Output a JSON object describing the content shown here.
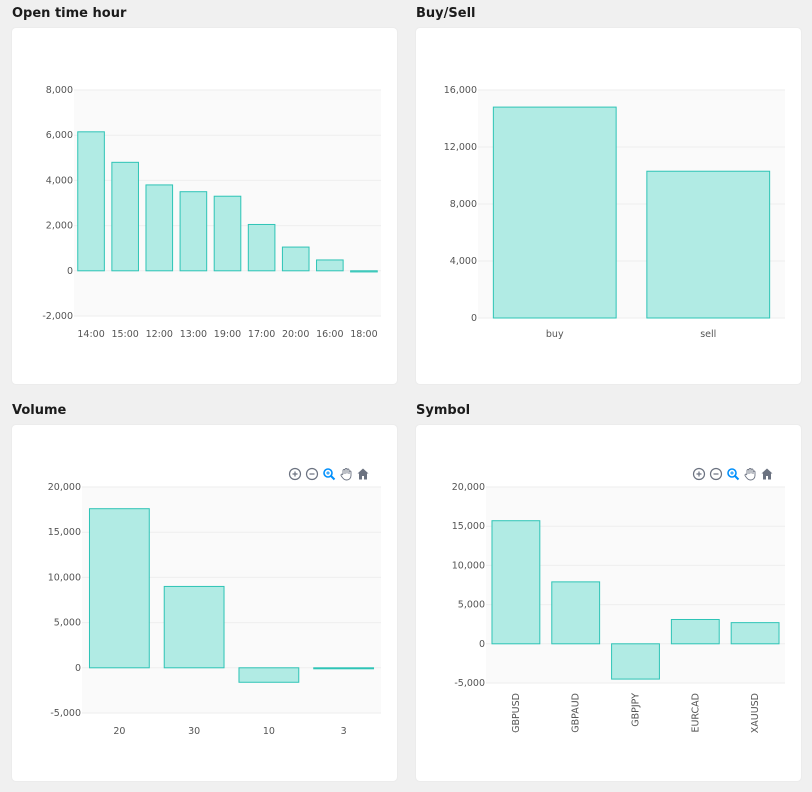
{
  "titles": {
    "open_time_hour": "Open time hour",
    "buy_sell": "Buy/Sell",
    "volume": "Volume",
    "symbol": "Symbol"
  },
  "colors": {
    "bar_fill": "#b1ebe4",
    "bar_stroke": "#2ec4b6",
    "plot_bg": "#fafafa",
    "grid": "#eeeeee",
    "icon_gray": "#6b7280",
    "icon_active": "#008ffb"
  },
  "toolbar_icons": [
    "zoom-in-icon",
    "zoom-out-icon",
    "selection-zoom-icon",
    "pan-hand-icon",
    "home-reset-icon"
  ],
  "chart_data": [
    {
      "id": "open_time_hour",
      "type": "bar",
      "categories": [
        "14:00",
        "15:00",
        "12:00",
        "13:00",
        "19:00",
        "17:00",
        "20:00",
        "16:00",
        "18:00"
      ],
      "values": [
        6150,
        4800,
        3800,
        3500,
        3300,
        2050,
        1050,
        480,
        -50
      ],
      "ylim": [
        -2000,
        8000
      ],
      "yticks": [
        8000,
        6000,
        4000,
        2000,
        0,
        -2000
      ],
      "ytick_labels": [
        "8,000",
        "6,000",
        "4,000",
        "2,000",
        "0",
        "-2,000"
      ]
    },
    {
      "id": "buy_sell",
      "type": "bar",
      "categories": [
        "buy",
        "sell"
      ],
      "values": [
        14800,
        10300
      ],
      "ylim": [
        0,
        16000
      ],
      "yticks": [
        16000,
        12000,
        8000,
        4000,
        0
      ],
      "ytick_labels": [
        "16,000",
        "12,000",
        "8,000",
        "4,000",
        "0"
      ]
    },
    {
      "id": "volume",
      "type": "bar",
      "categories": [
        "20",
        "30",
        "10",
        "3"
      ],
      "values": [
        17600,
        9000,
        -1600,
        -100
      ],
      "ylim": [
        -5000,
        20000
      ],
      "yticks": [
        20000,
        15000,
        10000,
        5000,
        0,
        -5000
      ],
      "ytick_labels": [
        "20,000",
        "15,000",
        "10,000",
        "5,000",
        "0",
        "-5,000"
      ]
    },
    {
      "id": "symbol",
      "type": "bar",
      "categories": [
        "GBPUSD",
        "GBPAUD",
        "GBPJPY",
        "EURCAD",
        "XAUUSD"
      ],
      "values": [
        15700,
        7900,
        -4500,
        3100,
        2700
      ],
      "ylim": [
        -5000,
        20000
      ],
      "yticks": [
        20000,
        15000,
        10000,
        5000,
        0,
        -5000
      ],
      "ytick_labels": [
        "20,000",
        "15,000",
        "10,000",
        "5,000",
        "0",
        "-5,000"
      ],
      "rotate_xlabels": true
    }
  ]
}
